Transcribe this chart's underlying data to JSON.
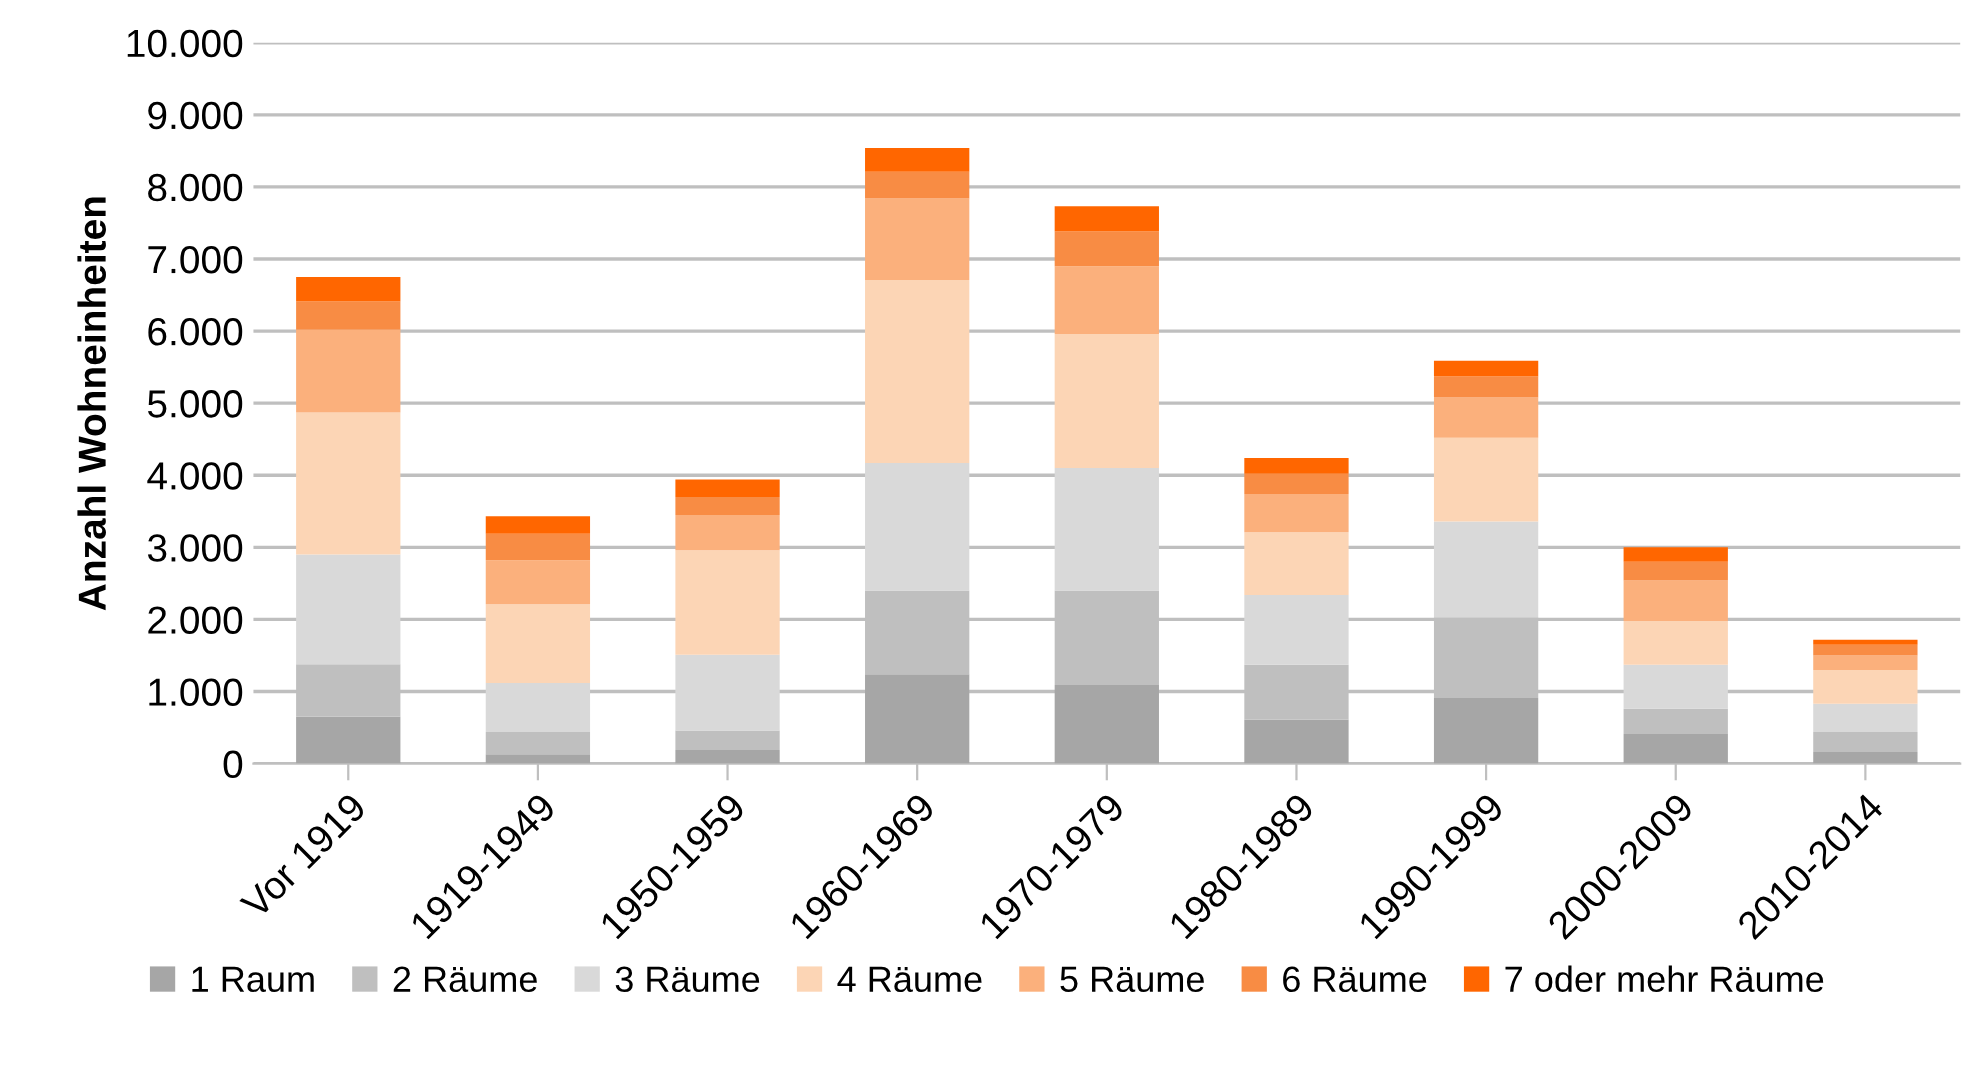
{
  "chart_data": {
    "type": "bar",
    "stacked": true,
    "ylabel": "Anzahl Wohneinheiten",
    "categories": [
      "Vor 1919",
      "1919-1949",
      "1950-1959",
      "1960-1969",
      "1970-1979",
      "1980-1989",
      "1990-1999",
      "2000-2009",
      "2010-2014"
    ],
    "series": [
      {
        "name": "1 Raum",
        "color": "#a6a6a6",
        "values": [
          650,
          130,
          190,
          1240,
          1090,
          610,
          910,
          410,
          160
        ]
      },
      {
        "name": "2 Räume",
        "color": "#bfbfbf",
        "values": [
          730,
          310,
          270,
          1160,
          1310,
          760,
          1120,
          350,
          280
        ]
      },
      {
        "name": "3 Räume",
        "color": "#d9d9d9",
        "values": [
          1520,
          680,
          1050,
          1770,
          1700,
          970,
          1330,
          610,
          390
        ]
      },
      {
        "name": "4 Räume",
        "color": "#fcd5b5",
        "values": [
          1970,
          1090,
          1450,
          2540,
          1860,
          870,
          1160,
          610,
          470
        ]
      },
      {
        "name": "5 Räume",
        "color": "#fbb07c",
        "values": [
          1150,
          610,
          490,
          1130,
          940,
          530,
          560,
          560,
          200
        ]
      },
      {
        "name": "6 Räume",
        "color": "#f88c44",
        "values": [
          390,
          370,
          250,
          370,
          480,
          280,
          290,
          260,
          150
        ]
      },
      {
        "name": "7 oder mehr Räume",
        "color": "#ff6600",
        "values": [
          340,
          240,
          240,
          330,
          350,
          220,
          220,
          200,
          70
        ]
      }
    ],
    "ylim": [
      0,
      10000
    ],
    "yticks": [
      0,
      {
        "value": 1000,
        "label": "1.000"
      },
      {
        "value": 2000,
        "label": "2.000"
      },
      {
        "value": 3000,
        "label": "3.000"
      },
      {
        "value": 4000,
        "label": "4.000"
      },
      {
        "value": 5000,
        "label": "5.000"
      },
      {
        "value": 6000,
        "label": "6.000"
      },
      {
        "value": 7000,
        "label": "7.000"
      },
      {
        "value": 8000,
        "label": "8.000"
      },
      {
        "value": 9000,
        "label": "9.000"
      },
      {
        "value": 10000,
        "label": "10.000"
      }
    ],
    "grid": "y",
    "legend": "bottom"
  }
}
